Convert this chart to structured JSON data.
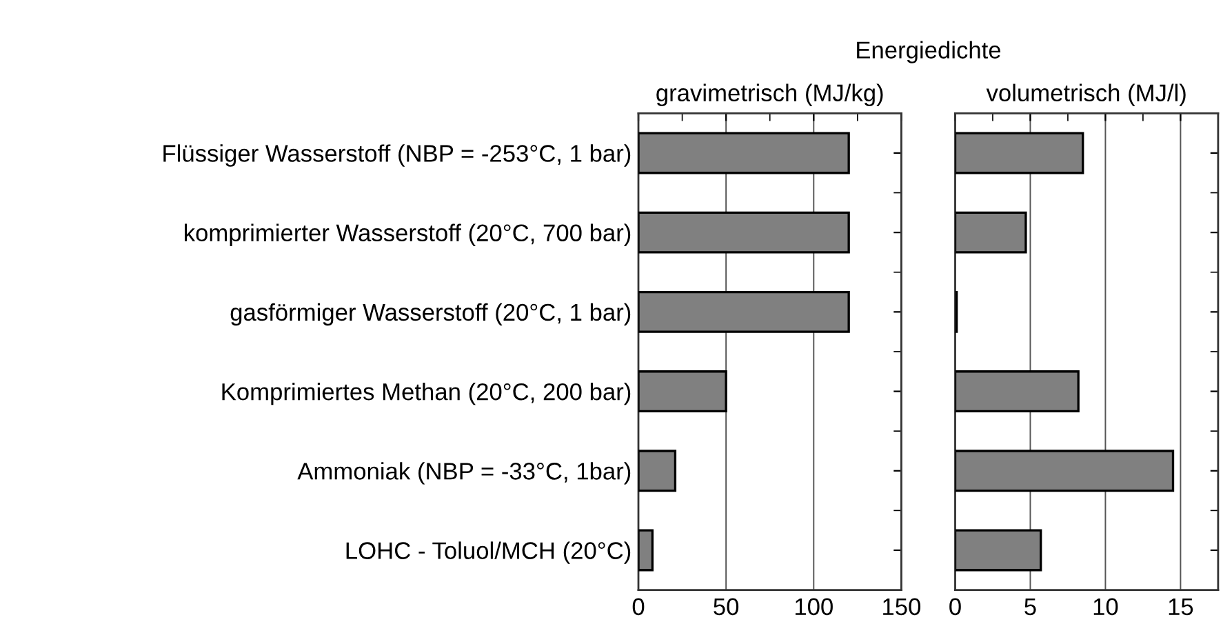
{
  "chart_data": [
    {
      "type": "bar",
      "orientation": "horizontal",
      "title": "Energiedichte",
      "subtitle": "gravimetrisch (MJ/kg)",
      "categories": [
        "Flüssiger Wasserstoff (NBP = -253°C, 1 bar)",
        "komprimierter Wasserstoff (20°C, 700 bar)",
        "gasförmiger Wasserstoff (20°C, 1 bar)",
        "Komprimiertes Methan (20°C, 200 bar)",
        "Ammoniak (NBP = -33°C, 1bar)",
        "LOHC - Toluol/MCH (20°C)"
      ],
      "values": [
        120,
        120,
        120,
        50,
        21,
        8
      ],
      "color": "#808080",
      "xlim": [
        0,
        150
      ],
      "xticks": [
        0,
        {
          "value": 25,
          "label": null
        },
        50,
        {
          "value": 75,
          "label": null
        },
        100,
        {
          "value": 125,
          "label": null
        },
        150
      ],
      "grid": "x"
    },
    {
      "type": "bar",
      "orientation": "horizontal",
      "subtitle": "volumetrisch (MJ/l)",
      "values": [
        8.5,
        4.7,
        0.1,
        8.2,
        14.5,
        5.7
      ],
      "color": "#808080",
      "xlim": [
        0,
        17.5
      ],
      "xticks": [
        0,
        {
          "value": 2.5,
          "label": null
        },
        5,
        {
          "value": 7.5,
          "label": null
        },
        10,
        {
          "value": 12.5,
          "label": null
        },
        15
      ],
      "grid": "x",
      "tick_labels": "x"
    }
  ]
}
